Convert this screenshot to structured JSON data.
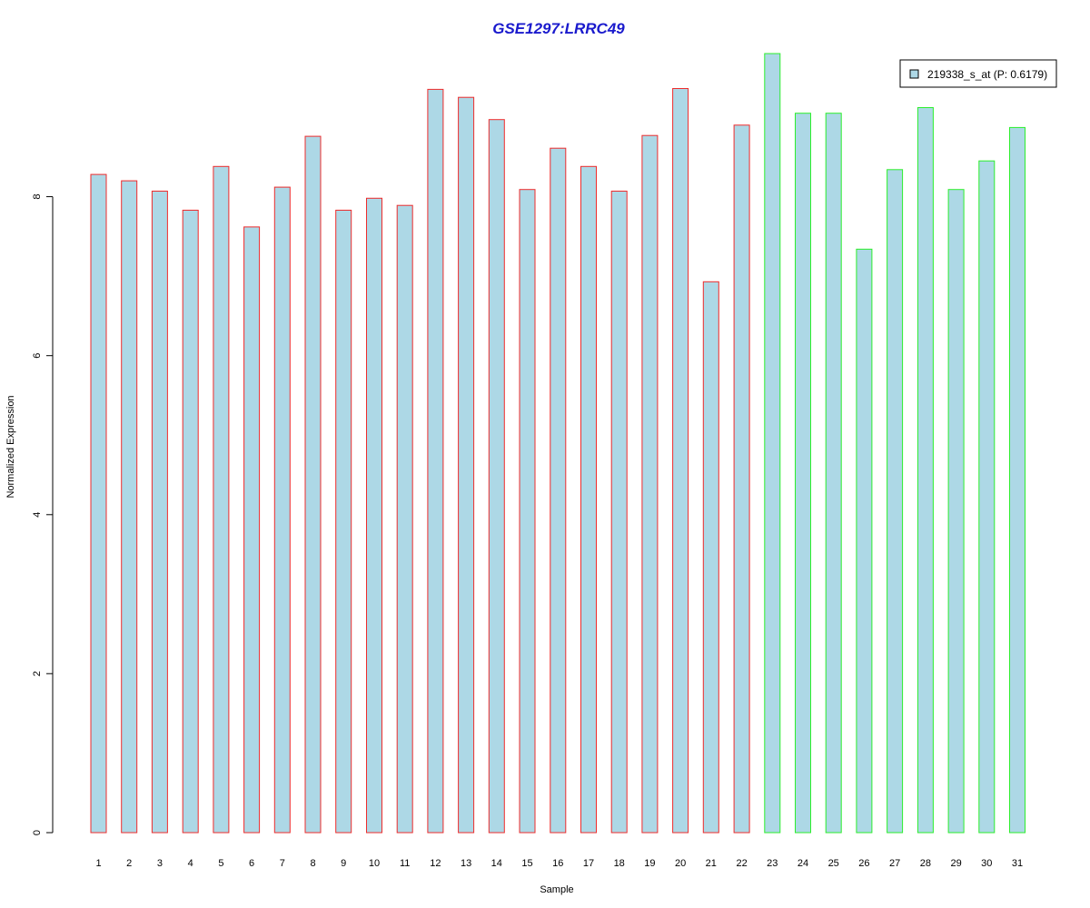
{
  "chart_data": {
    "type": "bar",
    "title": "GSE1297:LRRC49",
    "xlabel": "Sample",
    "ylabel": "Normalized Expression",
    "categories": [
      "1",
      "2",
      "3",
      "4",
      "5",
      "6",
      "7",
      "8",
      "9",
      "10",
      "11",
      "12",
      "13",
      "14",
      "15",
      "16",
      "17",
      "18",
      "19",
      "20",
      "21",
      "22",
      "23",
      "24",
      "25",
      "26",
      "27",
      "28",
      "29",
      "30",
      "31"
    ],
    "series": [
      {
        "name": "219338_s_at (P: 0.6179)",
        "values": [
          8.28,
          8.2,
          8.07,
          7.83,
          8.38,
          7.62,
          8.12,
          8.76,
          7.83,
          7.98,
          7.89,
          9.35,
          9.25,
          8.97,
          8.09,
          8.61,
          8.38,
          8.07,
          8.77,
          9.36,
          6.93,
          8.9,
          9.8,
          9.05,
          9.05,
          7.34,
          8.34,
          9.12,
          8.09,
          8.45,
          8.87
        ]
      }
    ],
    "groups": [
      {
        "from": 1,
        "to": 22,
        "border_color": "#ee2c2c"
      },
      {
        "from": 23,
        "to": 31,
        "border_color": "#2cee2c"
      }
    ],
    "yticks": [
      0,
      2,
      4,
      6,
      8
    ],
    "ylim": [
      0,
      9.8
    ],
    "grid": false,
    "legend_position": "top-right",
    "colors": {
      "bar_fill": "#add8e6",
      "title": "#1a1acd",
      "legend_box_border": "#000000"
    }
  }
}
